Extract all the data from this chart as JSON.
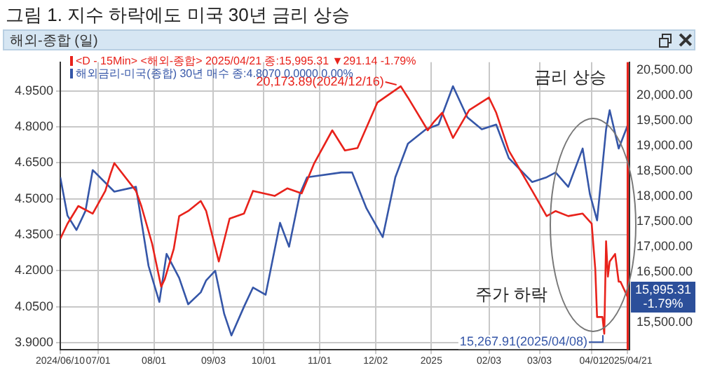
{
  "chart_data": {
    "type": "line",
    "title": "그림 1. 지수 하락에도 미국 30년 금리 상승",
    "subtitle": "해외-종합 (일)",
    "xlim": [
      "2024-06-10",
      "2025-04-22"
    ],
    "xticks": [
      {
        "value": "2024-06-10",
        "label": "2024/06/10"
      },
      {
        "value": "2024-07-01",
        "label": "07/01"
      },
      {
        "value": "2024-08-01",
        "label": "08/01"
      },
      {
        "value": "2024-09-03",
        "label": "09/03"
      },
      {
        "value": "2024-10-01",
        "label": "10/01"
      },
      {
        "value": "2024-11-01",
        "label": "11/01"
      },
      {
        "value": "2024-12-02",
        "label": "12/02"
      },
      {
        "value": "2025-01-02",
        "label": "2025"
      },
      {
        "value": "2025-02-03",
        "label": "02/03"
      },
      {
        "value": "2025-03-03",
        "label": "03/03"
      },
      {
        "value": "2025-04-01",
        "label": "04/01"
      },
      {
        "value": "2025-04-21",
        "label": "2025/04/21"
      }
    ],
    "ylim": [
      3.87,
      5.07
    ],
    "yticks": [
      {
        "value": 3.9,
        "label": "3.9000"
      },
      {
        "value": 4.05,
        "label": "4.0500"
      },
      {
        "value": 4.2,
        "label": "4.2000"
      },
      {
        "value": 4.35,
        "label": "4.3500"
      },
      {
        "value": 4.5,
        "label": "4.5000"
      },
      {
        "value": 4.65,
        "label": "4.6500"
      },
      {
        "value": 4.8,
        "label": "4.8000"
      },
      {
        "value": 4.95,
        "label": "4.9500"
      }
    ],
    "y2lim": [
      14950,
      20650
    ],
    "y2ticks": [
      {
        "value": 15500,
        "label": "15,500.00"
      },
      {
        "value": 16500,
        "label": "16,500.00"
      },
      {
        "value": 17000,
        "label": "17,000.00"
      },
      {
        "value": 17500,
        "label": "17,500.00"
      },
      {
        "value": 18000,
        "label": "18,000.00"
      },
      {
        "value": 18500,
        "label": "18,500.00"
      },
      {
        "value": 19000,
        "label": "19,000.00"
      },
      {
        "value": 19500,
        "label": "19,500.00"
      },
      {
        "value": 20000,
        "label": "20,000.00"
      },
      {
        "value": 20500,
        "label": "20,500.00"
      }
    ],
    "grid": true,
    "legend": "top left",
    "marker": "none",
    "line_style": "solid",
    "series": [
      {
        "name": "<D - 15Min> <해외-종합> 2025/04/21 종:15,995.31 ▼291.14 -1.79%",
        "color": "#e8221b",
        "axis": "y2",
        "x": [
          "2024-06-10",
          "2024-06-14",
          "2024-06-20",
          "2024-06-28",
          "2024-07-05",
          "2024-07-08",
          "2024-07-10",
          "2024-07-22",
          "2024-07-25",
          "2024-07-31",
          "2024-08-05",
          "2024-08-07",
          "2024-08-12",
          "2024-08-15",
          "2024-08-20",
          "2024-08-27",
          "2024-08-30",
          "2024-09-06",
          "2024-09-12",
          "2024-09-20",
          "2024-09-25",
          "2024-10-07",
          "2024-10-14",
          "2024-10-22",
          "2024-10-29",
          "2024-11-08",
          "2024-11-15",
          "2024-11-22",
          "2024-12-03",
          "2024-12-16",
          "2024-12-20",
          "2024-12-31",
          "2025-01-03",
          "2025-01-08",
          "2025-01-14",
          "2025-01-23",
          "2025-02-03",
          "2025-02-07",
          "2025-02-14",
          "2025-02-27",
          "2025-03-07",
          "2025-03-12",
          "2025-03-19",
          "2025-03-27",
          "2025-04-01",
          "2025-04-03",
          "2025-04-04",
          "2025-04-07",
          "2025-04-08",
          "2025-04-09",
          "2025-04-10",
          "2025-04-11",
          "2025-04-14",
          "2025-04-16",
          "2025-04-17",
          "2025-04-21"
        ],
        "values": [
          17150,
          17450,
          17800,
          17650,
          18100,
          18450,
          18650,
          18100,
          17800,
          17050,
          16200,
          16350,
          16950,
          17600,
          17700,
          17900,
          17700,
          16700,
          17550,
          17650,
          18100,
          18000,
          18150,
          18050,
          18650,
          19300,
          18900,
          18950,
          19850,
          20173.89,
          19950,
          19300,
          19450,
          19650,
          19150,
          19700,
          19950,
          19650,
          18900,
          18100,
          17600,
          17700,
          17600,
          17650,
          17450,
          16550,
          15600,
          15600,
          15267.91,
          17100,
          16400,
          16700,
          16850,
          16300,
          16300,
          15995.31
        ]
      },
      {
        "name": "해외금리-미국(종합) 30년 매수 종:4.8070 0.0000 0.00%",
        "color": "#3556a8",
        "x": [
          "2024-06-10",
          "2024-06-14",
          "2024-06-19",
          "2024-06-24",
          "2024-06-28",
          "2024-07-10",
          "2024-07-22",
          "2024-07-29",
          "2024-08-04",
          "2024-08-08",
          "2024-08-15",
          "2024-08-20",
          "2024-08-27",
          "2024-08-30",
          "2024-09-04",
          "2024-09-09",
          "2024-09-13",
          "2024-09-20",
          "2024-09-25",
          "2024-10-02",
          "2024-10-10",
          "2024-10-15",
          "2024-10-21",
          "2024-10-25",
          "2024-11-13",
          "2024-11-19",
          "2024-11-27",
          "2024-12-06",
          "2024-12-13",
          "2024-12-20",
          "2024-12-30",
          "2025-01-06",
          "2025-01-14",
          "2025-01-22",
          "2025-01-30",
          "2025-02-07",
          "2025-02-14",
          "2025-02-27",
          "2025-03-07",
          "2025-03-12",
          "2025-03-19",
          "2025-03-27",
          "2025-03-31",
          "2025-04-04",
          "2025-04-09",
          "2025-04-11",
          "2025-04-16",
          "2025-04-21"
        ],
        "values": [
          4.59,
          4.43,
          4.37,
          4.45,
          4.62,
          4.53,
          4.55,
          4.22,
          4.07,
          4.27,
          4.17,
          4.06,
          4.11,
          4.16,
          4.2,
          4.02,
          3.93,
          4.05,
          4.13,
          4.1,
          4.4,
          4.3,
          4.52,
          4.59,
          4.61,
          4.61,
          4.46,
          4.34,
          4.59,
          4.73,
          4.79,
          4.81,
          4.97,
          4.84,
          4.79,
          4.81,
          4.67,
          4.57,
          4.59,
          4.61,
          4.55,
          4.71,
          4.52,
          4.41,
          4.79,
          4.87,
          4.71,
          4.807
        ]
      }
    ],
    "ref_lines": [
      {
        "axis": "x",
        "value": "2025-04-21",
        "color": "#e8221b"
      }
    ],
    "annotations": [
      "20,173.89(2024/12/16)",
      "15,267.91(2025/04/08)",
      "15,995.31\n-1.79%",
      "금리 상승",
      "주가 하락"
    ]
  }
}
